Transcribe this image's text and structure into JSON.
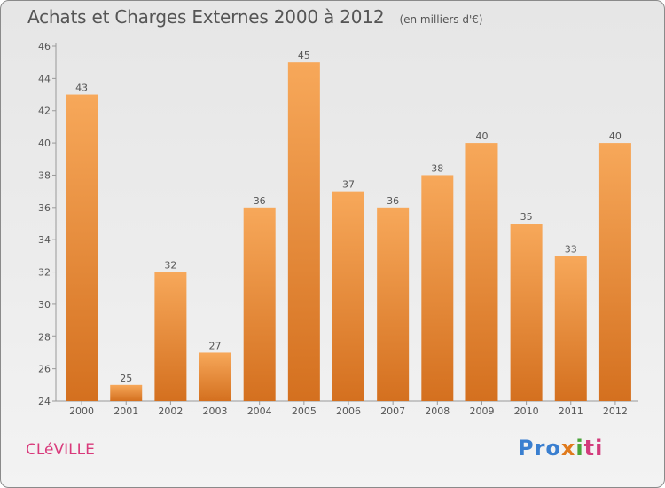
{
  "header": {
    "title": "Achats et Charges Externes 2000 à 2012",
    "subtitle": "(en milliers d'€)"
  },
  "footer": {
    "city": "CLéVILLE",
    "logo": [
      "Pro",
      "x",
      "i",
      "ti"
    ]
  },
  "colors": {
    "bar_top": "#f7a85a",
    "bar_bottom": "#d4701f",
    "text": "#555555",
    "city": "#d93a7b"
  },
  "chart_data": {
    "type": "bar",
    "title": "Achats et Charges Externes 2000 à 2012",
    "subtitle": "(en milliers d'€)",
    "categories": [
      "2000",
      "2001",
      "2002",
      "2003",
      "2004",
      "2005",
      "2006",
      "2007",
      "2008",
      "2009",
      "2010",
      "2011",
      "2012"
    ],
    "values": [
      43,
      25,
      32,
      27,
      36,
      45,
      37,
      36,
      38,
      40,
      35,
      33,
      40
    ],
    "ylim": [
      24,
      46
    ],
    "yticks": [
      24,
      26,
      28,
      30,
      32,
      34,
      36,
      38,
      40,
      42,
      44,
      46
    ],
    "grid": false,
    "legend": "none"
  }
}
